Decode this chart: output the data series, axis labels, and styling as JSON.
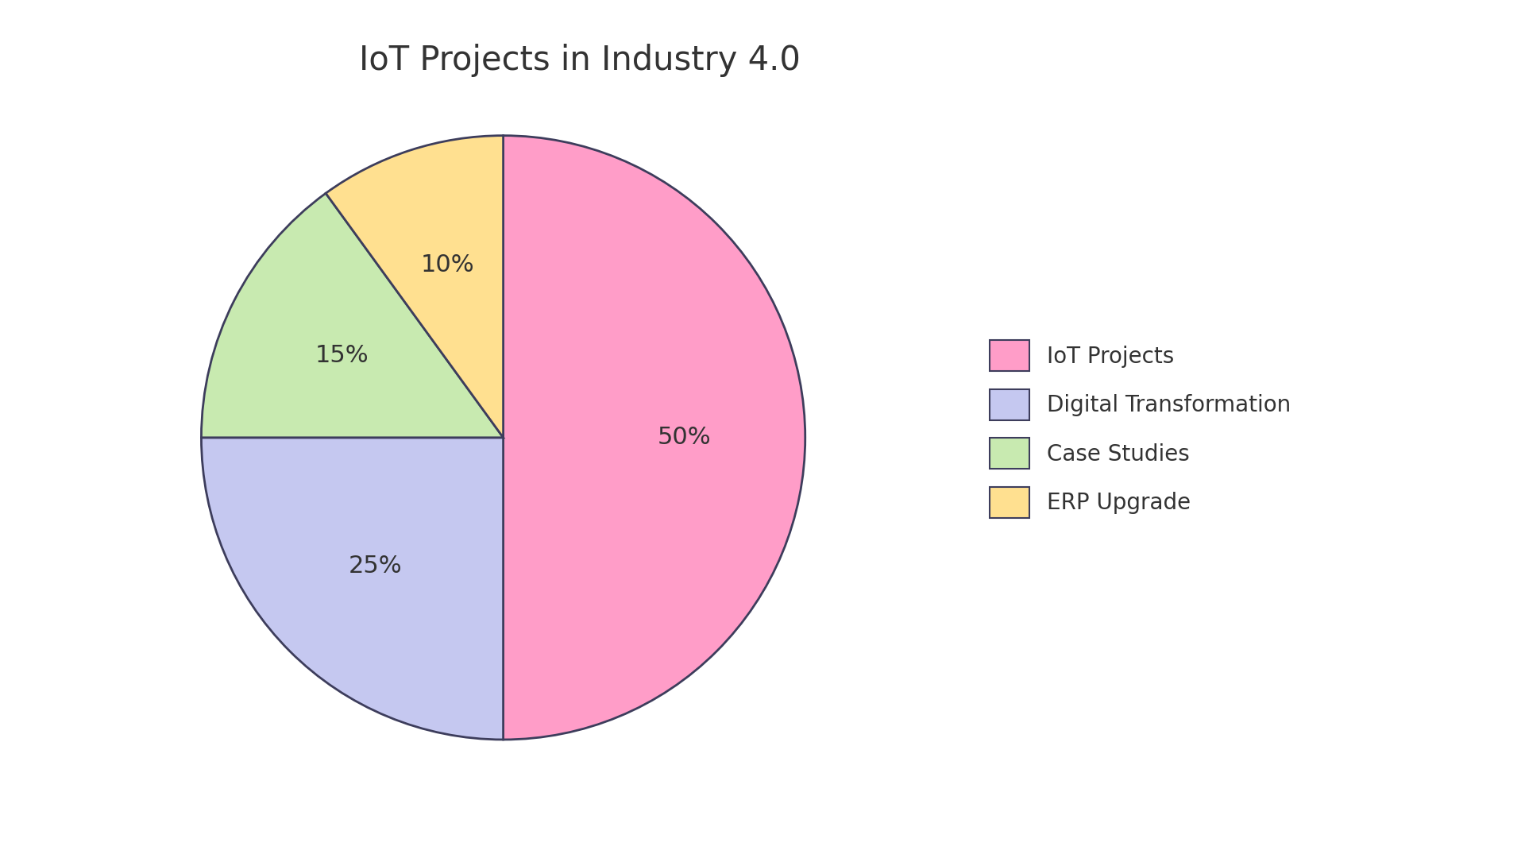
{
  "title": "IoT Projects in Industry 4.0",
  "labels": [
    "IoT Projects",
    "Digital Transformation",
    "Case Studies",
    "ERP Upgrade"
  ],
  "values": [
    50,
    25,
    15,
    10
  ],
  "colors": [
    "#FF9DC8",
    "#C5C8F0",
    "#C8EAB0",
    "#FFE090"
  ],
  "edge_color": "#3d3d5c",
  "edge_width": 2.0,
  "title_fontsize": 30,
  "legend_fontsize": 20,
  "pct_fontsize": 22,
  "background_color": "#ffffff",
  "startangle": 90
}
